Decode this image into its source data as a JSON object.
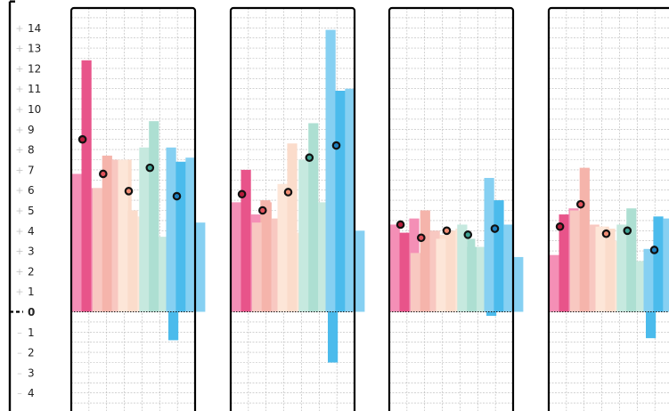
{
  "chart_data": {
    "type": "bar",
    "title": "",
    "xlabel": "",
    "ylabel": "",
    "ylim": [
      -4.6,
      15
    ],
    "y_ticks": [
      -4,
      -3,
      -2,
      -1,
      0,
      1,
      2,
      3,
      4,
      5,
      6,
      7,
      8,
      9,
      10,
      11,
      12,
      13,
      14
    ],
    "y_tick_labels": [
      "4",
      "3",
      "2",
      "1",
      "0",
      "1",
      "2",
      "3",
      "4",
      "5",
      "6",
      "7",
      "8",
      "9",
      "10",
      "11",
      "12",
      "13",
      "14"
    ],
    "grid": true,
    "legend": "none",
    "group_colors": [
      "#e8548a",
      "#f5b4ab",
      "#fbdccb",
      "#addfd2",
      "#4bbbec"
    ],
    "group_colors_light": [
      "#f48fb6",
      "#f8c8c1",
      "#fde6d8",
      "#c6e9df",
      "#86d0f2"
    ],
    "marker_colors": [
      "#b71c3b",
      "#e0525a",
      "#f08d74",
      "#3ea394",
      "#1e7fc0"
    ],
    "panels": [
      {
        "groups": [
          {
            "values": [
              6.8,
              12.4,
              6.1,
              6.0
            ],
            "mean": 8.5
          },
          {
            "values": [
              6.1,
              7.7,
              7.5,
              7.5
            ],
            "mean": 6.8
          },
          {
            "values": [
              7.5,
              5.0,
              4.7,
              4.7
            ],
            "mean": 5.95
          },
          {
            "values": [
              8.1,
              9.4,
              3.7,
              -1.4
            ],
            "mean": 7.1
          },
          {
            "values": [
              8.1,
              7.4,
              7.6,
              4.4
            ],
            "mean": 5.7
          }
        ]
      },
      {
        "groups": [
          {
            "values": [
              5.4,
              7.0,
              4.8,
              5.5
            ],
            "mean": 5.8
          },
          {
            "values": [
              4.4,
              5.4,
              4.6,
              6.3
            ],
            "mean": 5.0
          },
          {
            "values": [
              6.3,
              8.3,
              3.9,
              3.9
            ],
            "mean": 5.9
          },
          {
            "values": [
              7.5,
              9.3,
              5.4,
              -2.5
            ],
            "mean": 7.6
          },
          {
            "values": [
              13.9,
              10.9,
              11.0,
              4.0
            ],
            "mean": 8.2
          }
        ]
      },
      {
        "groups": [
          {
            "values": [
              4.3,
              3.9,
              4.6,
              2.7
            ],
            "mean": 4.3
          },
          {
            "values": [
              2.9,
              5.0,
              4.0,
              3.8
            ],
            "mean": 3.65
          },
          {
            "values": [
              3.6,
              4.0,
              4.1,
              3.6
            ],
            "mean": 4.0
          },
          {
            "values": [
              4.3,
              3.2,
              3.2,
              -0.2
            ],
            "mean": 3.8
          },
          {
            "values": [
              6.6,
              5.5,
              4.3,
              2.7
            ],
            "mean": 4.1
          }
        ]
      },
      {
        "groups": [
          {
            "values": [
              2.8,
              4.8,
              5.1,
              5.0
            ],
            "mean": 4.2
          },
          {
            "values": [
              5.0,
              7.1,
              4.3,
              4.2
            ],
            "mean": 5.3
          },
          {
            "values": [
              4.2,
              4.1,
              3.5,
              4.2
            ],
            "mean": 3.85
          },
          {
            "values": [
              4.3,
              5.1,
              2.5,
              -1.3
            ],
            "mean": 4.0
          },
          {
            "values": [
              3.1,
              4.7,
              4.6,
              2.8
            ],
            "mean": 3.05
          }
        ]
      }
    ]
  }
}
